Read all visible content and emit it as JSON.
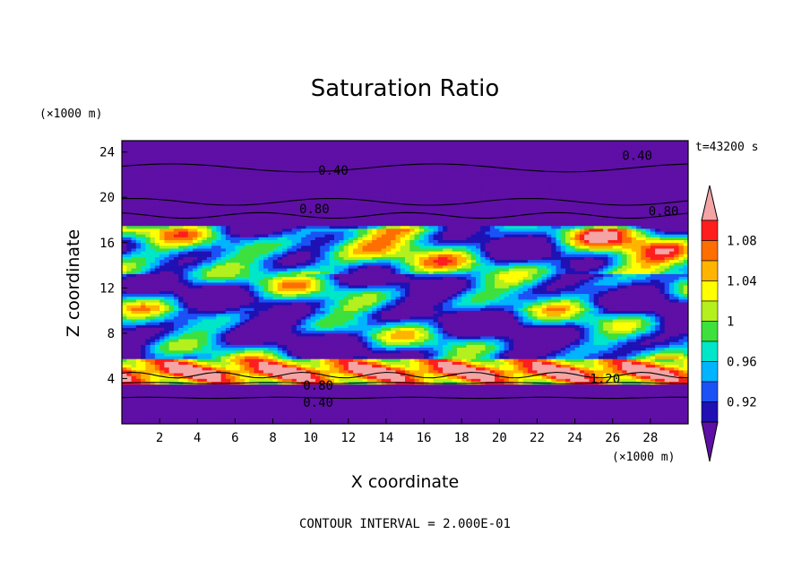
{
  "chart_data": {
    "type": "heatmap",
    "title": "Saturation Ratio",
    "xlabel": "X coordinate",
    "ylabel": "Z coordinate",
    "x_unit": "(×1000 m)",
    "y_unit": "(×1000 m)",
    "time_label": "t=43200 s",
    "footer": "CONTOUR INTERVAL = 2.000E-01",
    "xlim": [
      0,
      30
    ],
    "ylim": [
      0,
      25
    ],
    "x_ticks": [
      2,
      4,
      6,
      8,
      10,
      12,
      14,
      16,
      18,
      20,
      22,
      24,
      26,
      28
    ],
    "y_ticks": [
      4,
      8,
      12,
      16,
      20,
      24
    ],
    "colorbar": {
      "labels": [
        0.92,
        0.96,
        1,
        1.04,
        1.08
      ],
      "levels": [
        0.9,
        0.92,
        0.94,
        0.96,
        0.98,
        1.0,
        1.02,
        1.04,
        1.06,
        1.08,
        1.1
      ],
      "colors": [
        "#5e0fa5",
        "#1f11b3",
        "#1a52f5",
        "#00b4ff",
        "#00e6c8",
        "#3de03d",
        "#b4f01e",
        "#ffff00",
        "#ffb400",
        "#ff6e00",
        "#ff1e1e",
        "#f4a4a4"
      ]
    },
    "contour_labels": [
      {
        "text": "0.40",
        "x": 11.2,
        "z": 22.4
      },
      {
        "text": "0.40",
        "x": 27.3,
        "z": 23.7
      },
      {
        "text": "0.80",
        "x": 10.2,
        "z": 19.0
      },
      {
        "text": "0.80",
        "x": 28.7,
        "z": 18.8
      },
      {
        "text": "0.80",
        "x": 10.4,
        "z": 3.4
      },
      {
        "text": "0.40",
        "x": 10.4,
        "z": 1.9
      },
      {
        "text": "1.20",
        "x": 25.6,
        "z": 4.0
      }
    ]
  }
}
